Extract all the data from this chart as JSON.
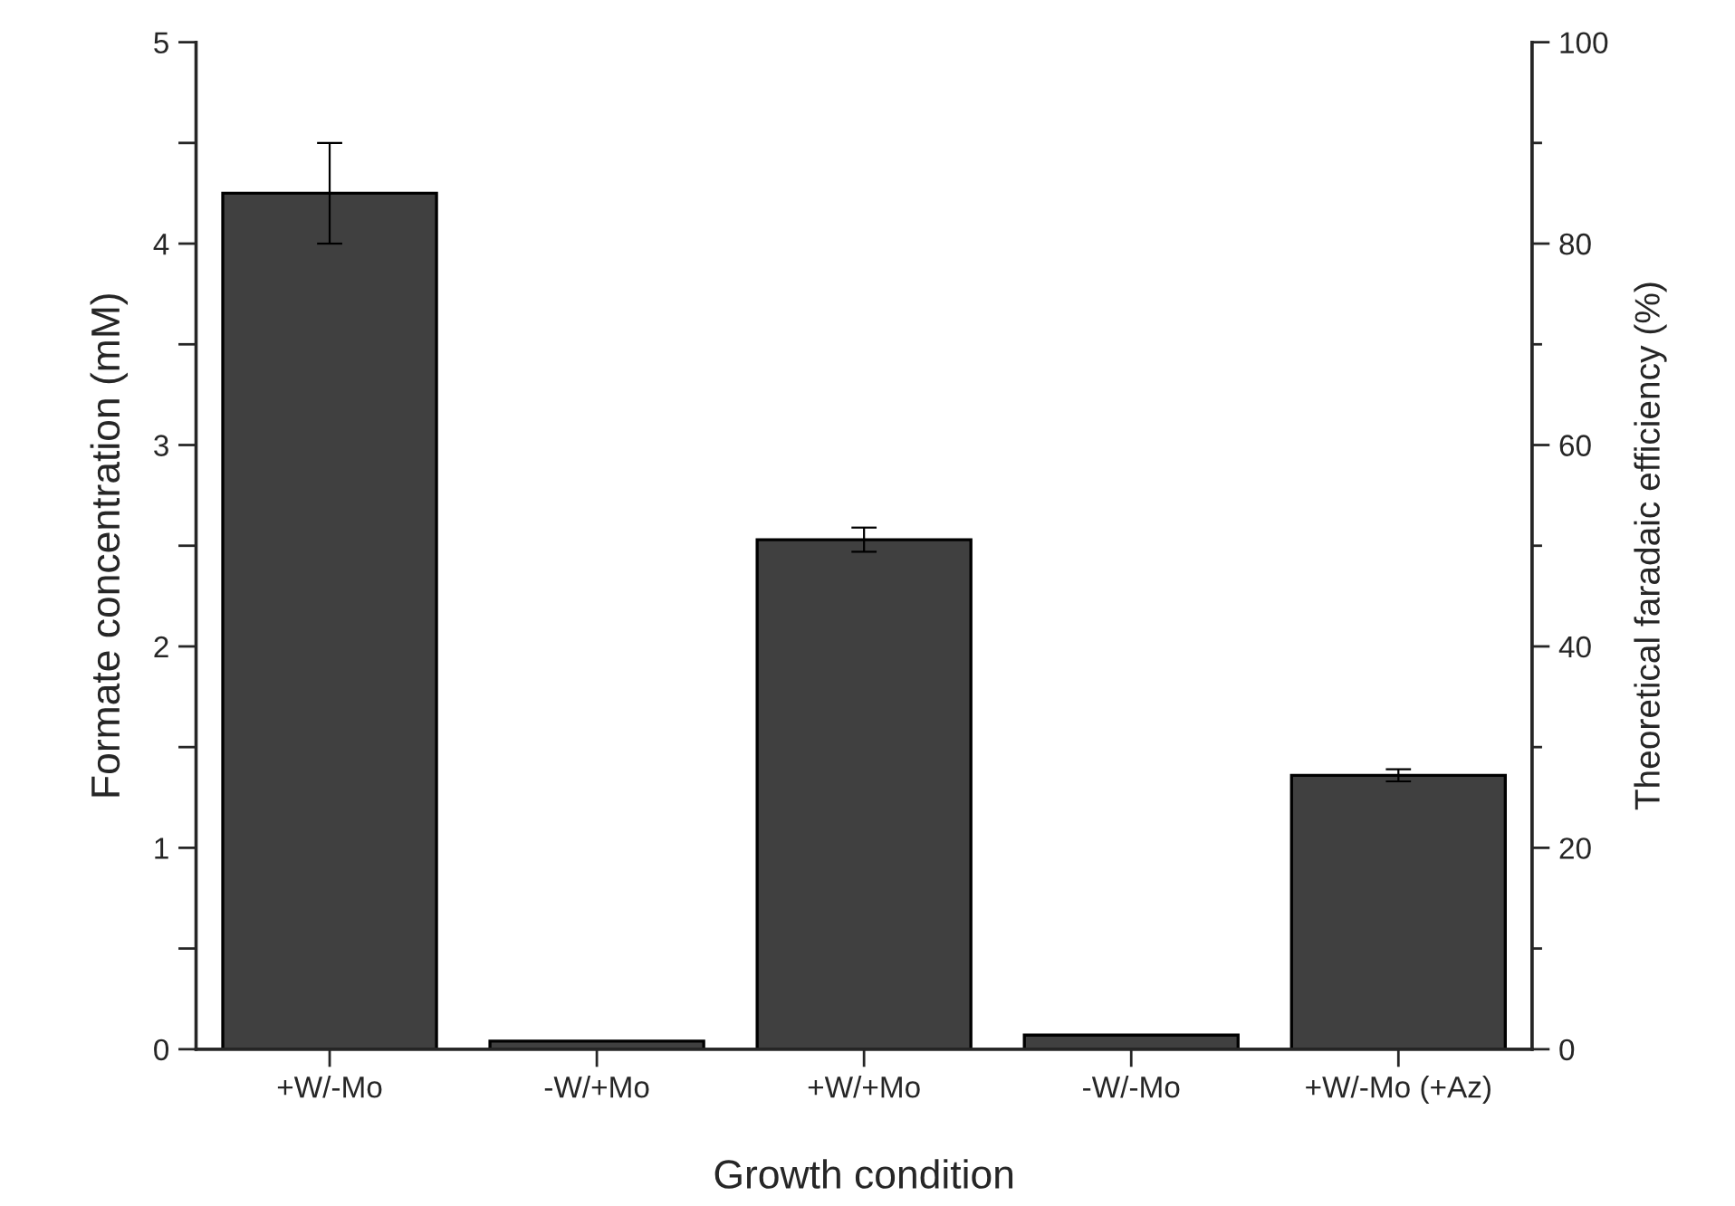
{
  "chart_data": {
    "type": "bar",
    "xlabel": "Growth condition",
    "ylabel": "Formate concentration (mM)",
    "y2label": "Theoretical faradaic efficiency (%)",
    "categories": [
      "+W/-Mo",
      "-W/+Mo",
      "+W/+Mo",
      "-W/-Mo",
      "+W/-Mo (+Az)"
    ],
    "values": [
      4.25,
      0.04,
      2.53,
      0.07,
      1.36
    ],
    "errors": [
      0.25,
      null,
      0.06,
      null,
      0.03
    ],
    "color": "#404040",
    "ylim": [
      0,
      5
    ],
    "yticks": [
      0,
      {
        "value": 0.5,
        "label": null
      },
      1,
      {
        "value": 1.5,
        "label": null
      },
      2,
      {
        "value": 2.5,
        "label": null
      },
      3,
      {
        "value": 3.5,
        "label": null
      },
      4,
      {
        "value": 4.5,
        "label": null
      },
      5
    ],
    "y2lim": [
      0,
      100
    ],
    "y2ticks": [
      0,
      {
        "value": 10,
        "label": null
      },
      20,
      {
        "value": 30,
        "label": null
      },
      40,
      {
        "value": 50,
        "label": null
      },
      60,
      {
        "value": 70,
        "label": null
      },
      80,
      {
        "value": 90,
        "label": null
      },
      100
    ],
    "grid": false,
    "legend": false
  }
}
